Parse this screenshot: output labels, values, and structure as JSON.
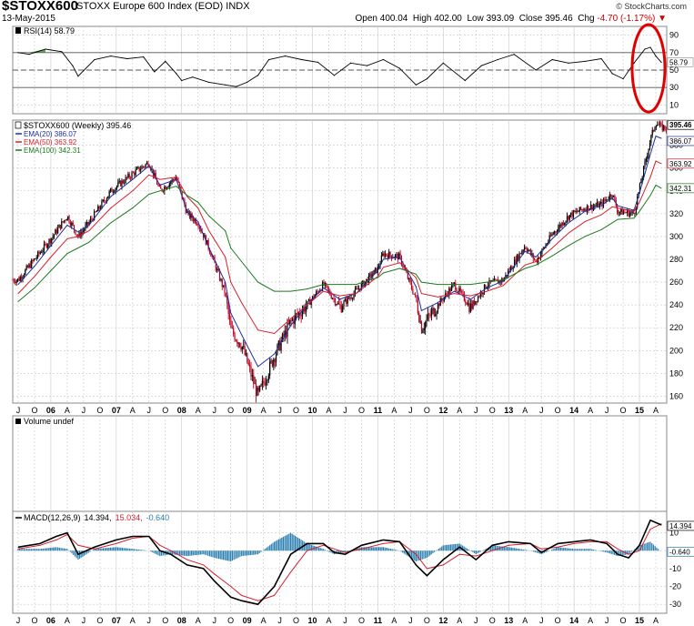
{
  "header": {
    "symbol": "$STOXX600",
    "name": "STOXX Europe 600 Index (EOD)",
    "exchange": "INDX",
    "date": "13-May-2015",
    "credit": "© StockCharts.com",
    "open_label": "Open",
    "open": "400.04",
    "high_label": "High",
    "high": "402.00",
    "low_label": "Low",
    "low": "393.09",
    "close_label": "Close",
    "close": "395.46",
    "chg_label": "Chg",
    "chg": "-4.70 (-1.17%)"
  },
  "colors": {
    "ema20": "#1f2f9c",
    "ema50": "#d42030",
    "ema100": "#1e7a1e",
    "candle_up": "#000000",
    "candle_down": "#c00020",
    "macd_line": "#000000",
    "macd_signal": "#d42030",
    "macd_hist": "#2a7fb0",
    "annotation": "#e00000",
    "grid": "#c8c8c8"
  },
  "chart_data": [
    {
      "type": "line",
      "title": "RSI(14) 58.79",
      "legend_label": "RSI(14) 58.79",
      "last_value_label": "58.79",
      "yticks": [
        "90",
        "70",
        "50",
        "30",
        "10"
      ],
      "reference_lines": [
        70,
        50,
        30
      ],
      "ylim": [
        0,
        100
      ],
      "x": [
        "2005-07",
        "2005-09",
        "2005-12",
        "2006-03",
        "2006-05",
        "2006-06",
        "2006-09",
        "2006-12",
        "2007-03",
        "2007-06",
        "2007-08",
        "2007-10",
        "2007-12",
        "2008-01",
        "2008-03",
        "2008-06",
        "2008-09",
        "2008-11",
        "2009-01",
        "2009-03",
        "2009-05",
        "2009-08",
        "2009-11",
        "2010-02",
        "2010-05",
        "2010-08",
        "2010-11",
        "2011-02",
        "2011-05",
        "2011-08",
        "2011-10",
        "2012-01",
        "2012-05",
        "2012-08",
        "2012-11",
        "2013-02",
        "2013-06",
        "2013-09",
        "2013-12",
        "2014-03",
        "2014-06",
        "2014-08",
        "2014-10",
        "2014-12",
        "2015-02",
        "2015-03",
        "2015-04",
        "2015-05"
      ],
      "series": [
        {
          "values": [
            70,
            68,
            74,
            71,
            55,
            43,
            62,
            66,
            63,
            65,
            48,
            60,
            46,
            38,
            42,
            36,
            33,
            31,
            36,
            44,
            62,
            66,
            62,
            59,
            44,
            58,
            55,
            62,
            52,
            33,
            40,
            58,
            38,
            55,
            62,
            68,
            50,
            62,
            58,
            60,
            63,
            46,
            40,
            58,
            74,
            76,
            66,
            59
          ]
        }
      ]
    },
    {
      "type": "candlestick",
      "title": "$STOXX600 (Weekly) 395.46",
      "legend": [
        "$STOXX600 (Weekly) 395.46",
        "EMA(20) 386.07",
        "EMA(50) 363.92",
        "EMA(100) 342.31"
      ],
      "last_value_labels": [
        "395.46",
        "386.07",
        "363.92",
        "342.31"
      ],
      "yticks": [
        160,
        180,
        200,
        220,
        240,
        260,
        280,
        300,
        320,
        340,
        360,
        380
      ],
      "ylim": [
        154,
        402
      ],
      "x": [
        "2005-07",
        "2005-10",
        "2006-01",
        "2006-04",
        "2006-06",
        "2006-08",
        "2006-12",
        "2007-04",
        "2007-07",
        "2007-09",
        "2007-12",
        "2008-02",
        "2008-04",
        "2008-06",
        "2008-09",
        "2008-10",
        "2008-12",
        "2009-03",
        "2009-06",
        "2009-09",
        "2009-12",
        "2010-03",
        "2010-06",
        "2010-09",
        "2011-01",
        "2011-02",
        "2011-05",
        "2011-08",
        "2011-09",
        "2011-12",
        "2012-03",
        "2012-06",
        "2012-09",
        "2012-12",
        "2013-04",
        "2013-06",
        "2013-09",
        "2013-12",
        "2014-03",
        "2014-06",
        "2014-08",
        "2014-09",
        "2014-12",
        "2015-01",
        "2015-03",
        "2015-04",
        "2015-05"
      ],
      "series": [
        {
          "name": "$STOXX600 (Weekly)",
          "values": [
            262,
            280,
            298,
            318,
            300,
            312,
            340,
            355,
            365,
            340,
            352,
            320,
            312,
            290,
            250,
            218,
            205,
            160,
            195,
            225,
            240,
            258,
            238,
            252,
            272,
            285,
            282,
            245,
            220,
            240,
            258,
            238,
            258,
            262,
            292,
            278,
            302,
            318,
            325,
            328,
            338,
            322,
            320,
            342,
            385,
            400,
            395.46
          ]
        },
        {
          "name": "EMA(20)",
          "values": [
            258,
            274,
            292,
            310,
            304,
            310,
            335,
            350,
            362,
            345,
            350,
            322,
            313,
            290,
            260,
            233,
            214,
            186,
            197,
            222,
            240,
            255,
            245,
            250,
            270,
            280,
            282,
            256,
            235,
            242,
            252,
            245,
            255,
            261,
            287,
            282,
            298,
            312,
            322,
            327,
            334,
            327,
            323,
            338,
            372,
            388,
            386.07
          ]
        },
        {
          "name": "EMA(50)",
          "values": [
            250,
            265,
            282,
            298,
            300,
            305,
            325,
            340,
            354,
            350,
            352,
            335,
            325,
            305,
            282,
            260,
            242,
            218,
            215,
            228,
            240,
            252,
            248,
            250,
            265,
            273,
            277,
            264,
            250,
            247,
            250,
            248,
            252,
            257,
            275,
            278,
            290,
            303,
            313,
            319,
            326,
            325,
            322,
            330,
            352,
            366,
            363.92
          ]
        },
        {
          "name": "EMA(100)",
          "values": [
            243,
            255,
            270,
            285,
            290,
            295,
            312,
            325,
            337,
            340,
            344,
            336,
            330,
            318,
            305,
            290,
            278,
            260,
            252,
            252,
            254,
            258,
            258,
            258,
            264,
            268,
            272,
            267,
            260,
            258,
            258,
            258,
            260,
            262,
            272,
            275,
            283,
            292,
            300,
            306,
            312,
            315,
            316,
            322,
            336,
            345,
            342.31
          ]
        }
      ]
    },
    {
      "type": "bar",
      "title": "Volume undef",
      "legend_label": "Volume undef"
    },
    {
      "type": "line",
      "title": "MACD(12,26,9) 14.394, 15.034, -0.640",
      "legend_name": "MACD(12,26,9)",
      "legend_values": [
        "14.394",
        "15.034",
        "-0.640"
      ],
      "last_value_labels": [
        "14.394",
        "-0.640"
      ],
      "yticks": [
        "10",
        "0",
        "-10",
        "-20",
        "-30"
      ],
      "ylim": [
        -35,
        22
      ],
      "x": [
        "2005-07",
        "2005-11",
        "2006-02",
        "2006-04",
        "2006-06",
        "2006-09",
        "2007-01",
        "2007-04",
        "2007-07",
        "2007-09",
        "2007-11",
        "2008-02",
        "2008-05",
        "2008-07",
        "2008-10",
        "2008-12",
        "2009-03",
        "2009-06",
        "2009-09",
        "2009-12",
        "2010-03",
        "2010-05",
        "2010-07",
        "2010-10",
        "2011-02",
        "2011-05",
        "2011-08",
        "2011-10",
        "2012-01",
        "2012-04",
        "2012-07",
        "2012-10",
        "2013-01",
        "2013-05",
        "2013-07",
        "2013-10",
        "2014-01",
        "2014-04",
        "2014-07",
        "2014-09",
        "2014-11",
        "2015-01",
        "2015-03",
        "2015-05"
      ],
      "series": [
        {
          "name": "MACD",
          "values": [
            2,
            4,
            8,
            10,
            -2,
            2,
            6,
            8,
            8,
            0,
            -2,
            -8,
            -10,
            -17,
            -26,
            -28,
            -30,
            -20,
            -2,
            4,
            4,
            -1,
            -2,
            3,
            6,
            5,
            -8,
            -14,
            -5,
            2,
            -5,
            3,
            5,
            4,
            -1,
            4,
            5,
            6,
            4,
            -2,
            -4,
            3,
            17,
            14.394
          ]
        },
        {
          "name": "Signal",
          "values": [
            1,
            3,
            6,
            9,
            3,
            1,
            4,
            7,
            8,
            3,
            0,
            -5,
            -8,
            -13,
            -20,
            -25,
            -28,
            -25,
            -12,
            0,
            3,
            1,
            -1,
            1,
            4,
            5,
            -2,
            -10,
            -8,
            -2,
            -3,
            0,
            3,
            4,
            1,
            2,
            4,
            5,
            5,
            1,
            -2,
            0,
            12,
            15.034
          ]
        },
        {
          "name": "Histogram",
          "values": [
            1,
            1,
            2,
            1,
            -5,
            1,
            2,
            1,
            0,
            -3,
            -2,
            -3,
            -2,
            -4,
            -6,
            -3,
            -2,
            5,
            10,
            4,
            1,
            -2,
            -1,
            2,
            2,
            0,
            -6,
            -4,
            3,
            4,
            -2,
            3,
            2,
            0,
            -2,
            2,
            1,
            1,
            -1,
            -3,
            -2,
            3,
            5,
            -0.64
          ]
        }
      ]
    }
  ],
  "x_axis": {
    "labels": [
      {
        "date": "2005-07",
        "label": "J"
      },
      {
        "date": "2005-10",
        "label": "O"
      },
      {
        "date": "2006-01",
        "label": "06",
        "bold": true
      },
      {
        "date": "2006-04",
        "label": "A"
      },
      {
        "date": "2006-07",
        "label": "J"
      },
      {
        "date": "2006-10",
        "label": "O"
      },
      {
        "date": "2007-01",
        "label": "07",
        "bold": true
      },
      {
        "date": "2007-04",
        "label": "A"
      },
      {
        "date": "2007-07",
        "label": "J"
      },
      {
        "date": "2007-10",
        "label": "O"
      },
      {
        "date": "2008-01",
        "label": "08",
        "bold": true
      },
      {
        "date": "2008-04",
        "label": "A"
      },
      {
        "date": "2008-07",
        "label": "J"
      },
      {
        "date": "2008-10",
        "label": "O"
      },
      {
        "date": "2009-01",
        "label": "09",
        "bold": true
      },
      {
        "date": "2009-04",
        "label": "A"
      },
      {
        "date": "2009-07",
        "label": "J"
      },
      {
        "date": "2009-10",
        "label": "O"
      },
      {
        "date": "2010-01",
        "label": "10",
        "bold": true
      },
      {
        "date": "2010-04",
        "label": "A"
      },
      {
        "date": "2010-07",
        "label": "J"
      },
      {
        "date": "2010-10",
        "label": "O"
      },
      {
        "date": "2011-01",
        "label": "11",
        "bold": true
      },
      {
        "date": "2011-04",
        "label": "A"
      },
      {
        "date": "2011-07",
        "label": "J"
      },
      {
        "date": "2011-10",
        "label": "O"
      },
      {
        "date": "2012-01",
        "label": "12",
        "bold": true
      },
      {
        "date": "2012-04",
        "label": "A"
      },
      {
        "date": "2012-07",
        "label": "J"
      },
      {
        "date": "2012-10",
        "label": "O"
      },
      {
        "date": "2013-01",
        "label": "13",
        "bold": true
      },
      {
        "date": "2013-04",
        "label": "A"
      },
      {
        "date": "2013-07",
        "label": "J"
      },
      {
        "date": "2013-10",
        "label": "O"
      },
      {
        "date": "2014-01",
        "label": "14",
        "bold": true
      },
      {
        "date": "2014-04",
        "label": "A"
      },
      {
        "date": "2014-07",
        "label": "J"
      },
      {
        "date": "2014-10",
        "label": "O"
      },
      {
        "date": "2015-01",
        "label": "15",
        "bold": true
      },
      {
        "date": "2015-04",
        "label": "A"
      }
    ]
  }
}
